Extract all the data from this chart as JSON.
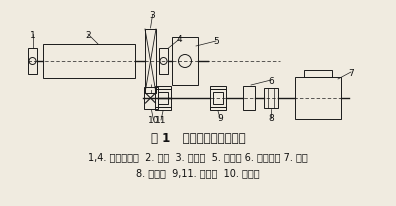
{
  "title_line1": "图 1   球磨机传动系统简图",
  "caption_line1": "1,4. 滑动轴承座  2. 筒体  3. 大齿圈  5. 进料端 6. 小齿轮轴 7. 电机",
  "caption_line2": "8. 联轴器  9,11. 轴承座  10. 小齿轮",
  "bg_color": "#f0ebe0",
  "line_color": "#1a1a1a",
  "text_color": "#111111",
  "title_fontsize": 8.5,
  "caption_fontsize": 7.0
}
